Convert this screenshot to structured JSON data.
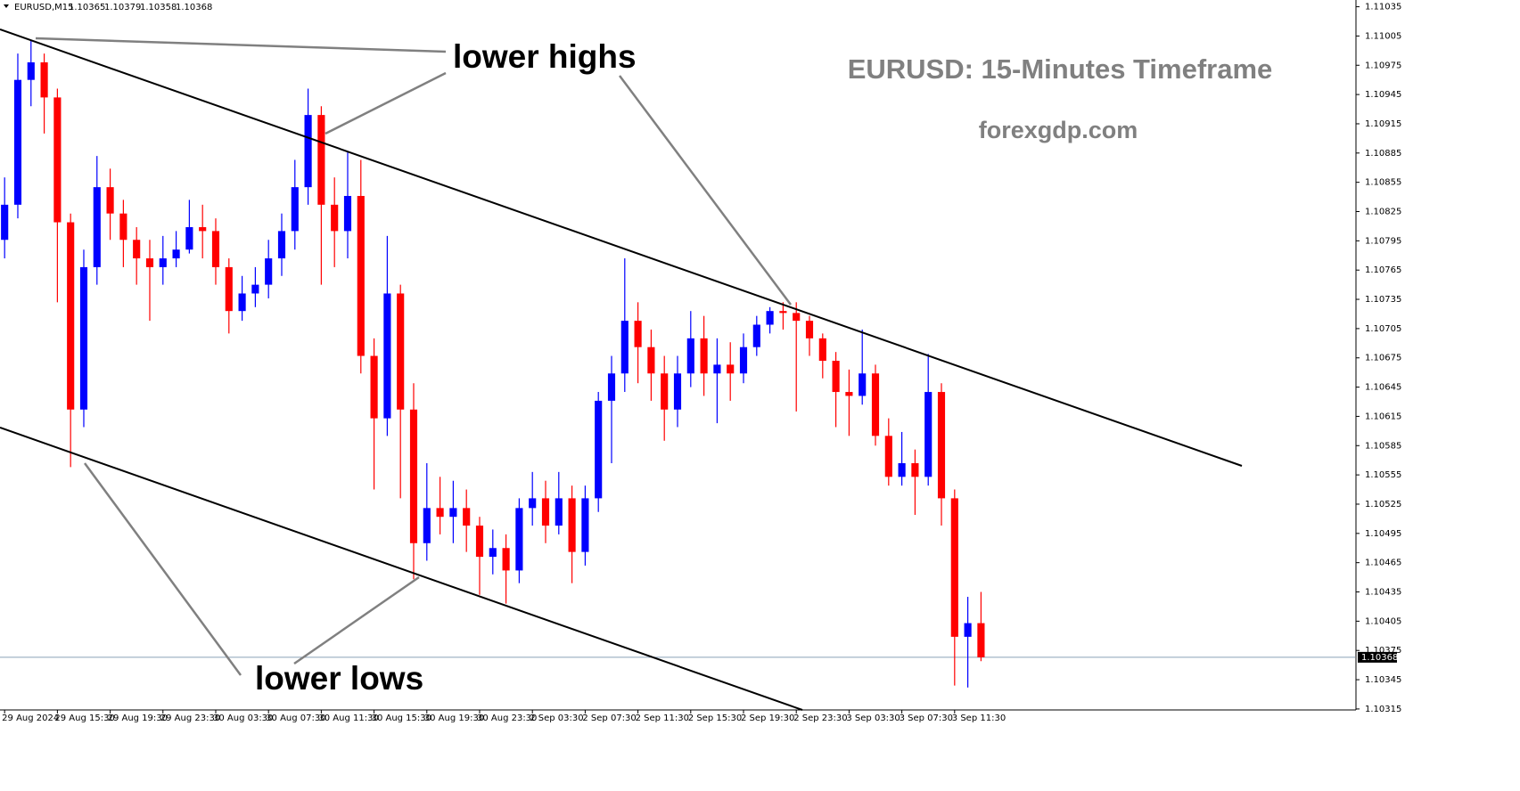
{
  "chart_data": {
    "type": "candlestick",
    "title": "EURUSD: 15-Minutes Timeframe",
    "subtitle": "forexgdp.com",
    "annotations": [
      "lower highs",
      "lower lows"
    ],
    "header_values": [
      1.10365,
      1.10379,
      1.10358,
      1.10368
    ],
    "current_price": 1.10368,
    "grid": false,
    "ylim": [
      1.10314,
      1.11041
    ],
    "yticks": [
      1.11035,
      1.11005,
      1.10975,
      1.10945,
      1.10915,
      1.10885,
      1.10855,
      1.10825,
      1.10795,
      1.10765,
      1.10735,
      1.10705,
      1.10675,
      1.10645,
      1.10615,
      1.10585,
      1.10555,
      1.10525,
      1.10495,
      1.10465,
      1.10435,
      1.10405,
      1.10375,
      1.10345,
      1.10315
    ],
    "xlim": [
      -0.35,
      102.35
    ],
    "xticks": [
      {
        "value": 0,
        "label": "29 Aug 2024"
      },
      {
        "value": 4,
        "label": "29 Aug 15:30"
      },
      {
        "value": 8,
        "label": "29 Aug 19:30"
      },
      {
        "value": 12,
        "label": "29 Aug 23:30"
      },
      {
        "value": 16,
        "label": "30 Aug 03:30"
      },
      {
        "value": 20,
        "label": "30 Aug 07:30"
      },
      {
        "value": 24,
        "label": "30 Aug 11:30"
      },
      {
        "value": 28,
        "label": "30 Aug 15:30"
      },
      {
        "value": 32,
        "label": "30 Aug 19:30"
      },
      {
        "value": 36,
        "label": "30 Aug 23:30"
      },
      {
        "value": 40,
        "label": "2 Sep 03:30"
      },
      {
        "value": 44,
        "label": "2 Sep 07:30"
      },
      {
        "value": 48,
        "label": "2 Sep 11:30"
      },
      {
        "value": 52,
        "label": "2 Sep 15:30"
      },
      {
        "value": 56,
        "label": "2 Sep 19:30"
      },
      {
        "value": 60,
        "label": "2 Sep 23:30"
      },
      {
        "value": 64,
        "label": "3 Sep 03:30"
      },
      {
        "value": 68,
        "label": "3 Sep 07:30"
      },
      {
        "value": 72,
        "label": "3 Sep 11:30"
      }
    ],
    "series": [
      {
        "name": "EURUSD,M15",
        "up_color": "#0000ff",
        "down_color": "#ff0000",
        "open": [
          1.10796,
          1.10832,
          1.1096,
          1.10978,
          1.10942,
          1.10814,
          1.10622,
          1.10768,
          1.1085,
          1.10823,
          1.10796,
          1.10777,
          1.10768,
          1.10777,
          1.10786,
          1.10809,
          1.10805,
          1.10768,
          1.10723,
          1.10741,
          1.1075,
          1.10777,
          1.10805,
          1.1085,
          1.10924,
          1.10832,
          1.10805,
          1.10841,
          1.10677,
          1.10613,
          1.10741,
          1.10622,
          1.10485,
          1.10521,
          1.10512,
          1.10521,
          1.10503,
          1.10471,
          1.1048,
          1.10457,
          1.10521,
          1.10531,
          1.10503,
          1.10531,
          1.10476,
          1.10531,
          1.10631,
          1.10659,
          1.10713,
          1.10686,
          1.10659,
          1.10622,
          1.10659,
          1.10695,
          1.10659,
          1.10668,
          1.10659,
          1.10686,
          1.10709,
          1.10723,
          1.10721,
          1.10713,
          1.10695,
          1.10672,
          1.1064,
          1.10636,
          1.10659,
          1.10595,
          1.10553,
          1.10567,
          1.10553,
          1.1064,
          1.10531,
          1.10389,
          1.10403
        ],
        "high": [
          1.1086,
          1.10987,
          1.11001,
          1.10987,
          1.10951,
          1.10823,
          1.10786,
          1.10882,
          1.10869,
          1.10837,
          1.10809,
          1.10796,
          1.108,
          1.10805,
          1.10837,
          1.10832,
          1.10818,
          1.10777,
          1.10759,
          1.10768,
          1.10796,
          1.10823,
          1.10878,
          1.10951,
          1.10933,
          1.1086,
          1.10887,
          1.10878,
          1.10695,
          1.108,
          1.1075,
          1.10649,
          1.10567,
          1.10553,
          1.10549,
          1.1054,
          1.10512,
          1.10499,
          1.10494,
          1.10531,
          1.10558,
          1.10549,
          1.10558,
          1.10544,
          1.10544,
          1.1064,
          1.10677,
          1.10777,
          1.10732,
          1.10704,
          1.10677,
          1.10677,
          1.10723,
          1.10718,
          1.10695,
          1.10691,
          1.107,
          1.10718,
          1.10727,
          1.10732,
          1.10732,
          1.10718,
          1.107,
          1.10681,
          1.10663,
          1.10704,
          1.10668,
          1.10613,
          1.10599,
          1.10581,
          1.10679,
          1.10649,
          1.1054,
          1.1043,
          1.10435
        ],
        "low": [
          1.10777,
          1.10818,
          1.10933,
          1.10905,
          1.10732,
          1.10563,
          1.10604,
          1.1075,
          1.10796,
          1.10768,
          1.1075,
          1.10713,
          1.1075,
          1.10768,
          1.10782,
          1.10777,
          1.1075,
          1.107,
          1.10713,
          1.10727,
          1.10736,
          1.10759,
          1.10786,
          1.10832,
          1.1075,
          1.10768,
          1.10777,
          1.10659,
          1.1054,
          1.10595,
          1.10531,
          1.10448,
          1.10467,
          1.10494,
          1.10485,
          1.10476,
          1.10432,
          1.10453,
          1.10423,
          1.10444,
          1.10503,
          1.10485,
          1.10494,
          1.10444,
          1.10462,
          1.10517,
          1.10567,
          1.1064,
          1.10649,
          1.10631,
          1.1059,
          1.10604,
          1.10645,
          1.10636,
          1.10608,
          1.10631,
          1.10649,
          1.10677,
          1.107,
          1.10704,
          1.1062,
          1.10677,
          1.10654,
          1.10604,
          1.10595,
          1.10627,
          1.10585,
          1.10544,
          1.10544,
          1.10514,
          1.10544,
          1.10503,
          1.10339,
          1.10337,
          1.10364
        ],
        "close": [
          1.10832,
          1.1096,
          1.10978,
          1.10942,
          1.10814,
          1.10622,
          1.10768,
          1.1085,
          1.10823,
          1.10796,
          1.10777,
          1.10768,
          1.10777,
          1.10786,
          1.10809,
          1.10805,
          1.10768,
          1.10723,
          1.10741,
          1.1075,
          1.10777,
          1.10805,
          1.1085,
          1.10924,
          1.10832,
          1.10805,
          1.10841,
          1.10677,
          1.10613,
          1.10741,
          1.10622,
          1.10485,
          1.10521,
          1.10512,
          1.10521,
          1.10503,
          1.10471,
          1.1048,
          1.10457,
          1.10521,
          1.10531,
          1.10503,
          1.10531,
          1.10476,
          1.10531,
          1.10631,
          1.10659,
          1.10713,
          1.10686,
          1.10659,
          1.10622,
          1.10659,
          1.10695,
          1.10659,
          1.10668,
          1.10659,
          1.10686,
          1.10709,
          1.10723,
          1.10721,
          1.10713,
          1.10695,
          1.10672,
          1.1064,
          1.10636,
          1.10659,
          1.10595,
          1.10553,
          1.10567,
          1.10553,
          1.1064,
          1.10531,
          1.10389,
          1.10403,
          1.10368
        ]
      }
    ]
  }
}
